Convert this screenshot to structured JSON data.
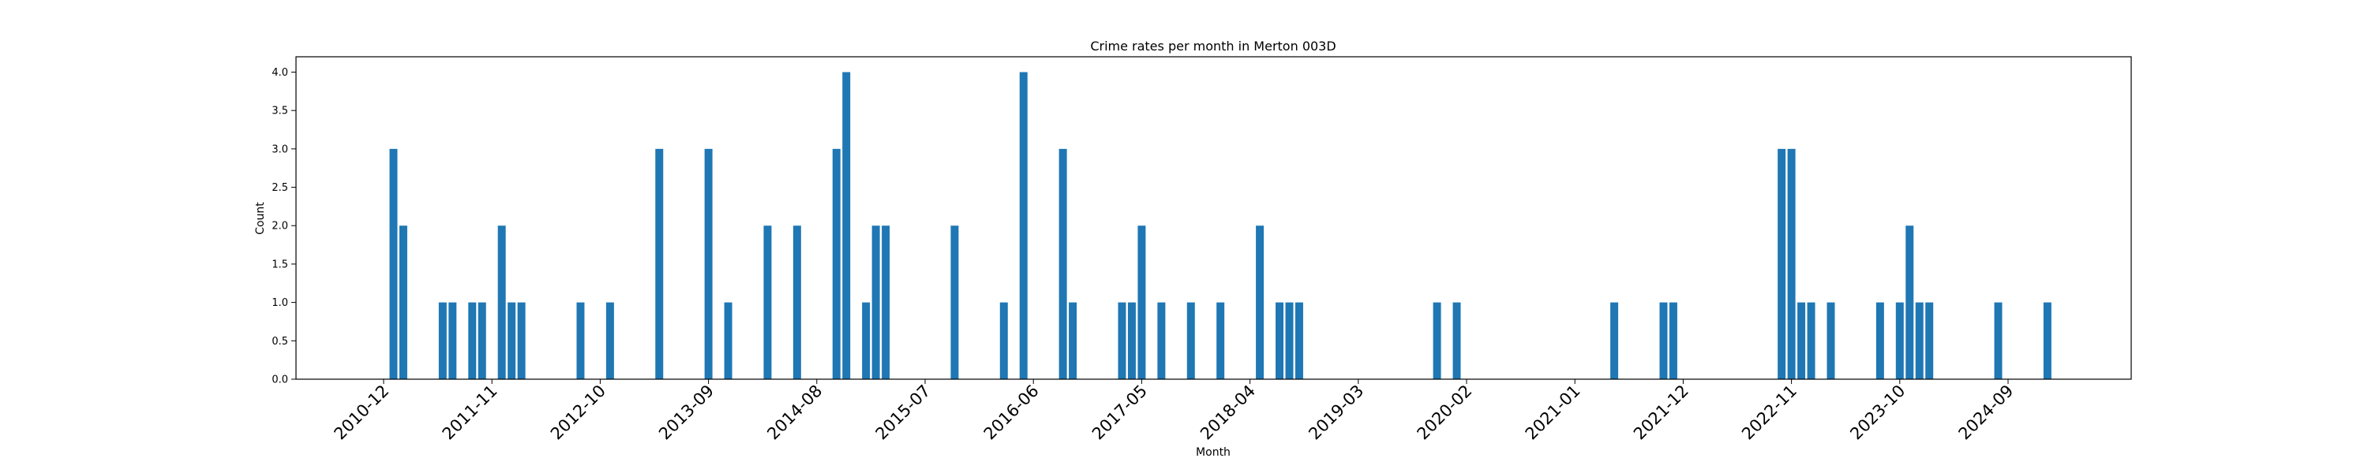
{
  "chart_data": {
    "type": "bar",
    "title": "Crime rates per month in Merton 003D",
    "xlabel": "Month",
    "ylabel": "Count",
    "ylim": [
      0,
      4.2
    ],
    "yticks": [
      "0.0",
      "0.5",
      "1.0",
      "1.5",
      "2.0",
      "2.5",
      "3.0",
      "3.5",
      "4.0"
    ],
    "xticks": [
      "2010-12",
      "2011-11",
      "2012-10",
      "2013-09",
      "2014-08",
      "2015-07",
      "2016-06",
      "2017-05",
      "2018-04",
      "2019-03",
      "2020-02",
      "2021-01",
      "2021-12",
      "2022-11",
      "2023-10",
      "2024-09"
    ],
    "grid": false,
    "bar_color": "#1f77b4",
    "months": [
      "2011-01",
      "2011-02",
      "2011-06",
      "2011-07",
      "2011-09",
      "2011-10",
      "2011-12",
      "2012-01",
      "2012-02",
      "2012-08",
      "2012-11",
      "2013-04",
      "2013-09",
      "2013-11",
      "2014-03",
      "2014-06",
      "2014-10",
      "2014-11",
      "2015-01",
      "2015-02",
      "2015-03",
      "2015-10",
      "2016-03",
      "2016-05",
      "2016-09",
      "2016-10",
      "2017-03",
      "2017-04",
      "2017-05",
      "2017-07",
      "2017-10",
      "2018-01",
      "2018-05",
      "2018-07",
      "2018-08",
      "2018-09",
      "2019-11",
      "2020-01",
      "2021-05",
      "2021-10",
      "2021-11",
      "2022-10",
      "2022-11",
      "2022-12",
      "2023-01",
      "2023-03",
      "2023-08",
      "2023-10",
      "2023-11",
      "2023-12",
      "2024-01",
      "2024-08",
      "2025-01"
    ],
    "values": [
      3,
      2,
      1,
      1,
      1,
      1,
      2,
      1,
      1,
      1,
      1,
      3,
      3,
      1,
      2,
      2,
      3,
      4,
      1,
      2,
      2,
      2,
      1,
      4,
      3,
      1,
      1,
      1,
      2,
      1,
      1,
      1,
      2,
      1,
      1,
      1,
      1,
      1,
      1,
      1,
      1,
      3,
      3,
      1,
      1,
      1,
      1,
      1,
      2,
      1,
      1,
      1,
      1
    ]
  }
}
